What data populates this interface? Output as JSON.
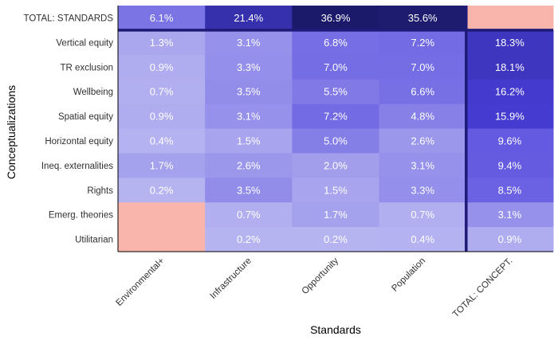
{
  "chart_data": {
    "type": "heatmap",
    "xlabel": "Standards",
    "ylabel": "Conceptualizations",
    "columns": [
      "Environmental+",
      "Infrastructure",
      "Opportunity",
      "Population",
      "TOTAL: CONCEPT."
    ],
    "rows": [
      "TOTAL: STANDARDS",
      "Vertical equity",
      "TR exclusion",
      "Wellbeing",
      "Spatial equity",
      "Horizontal equity",
      "Ineq. externalities",
      "Rights",
      "Emerg. theories",
      "Utilitarian"
    ],
    "values": [
      [
        6.1,
        21.4,
        36.9,
        35.6,
        null
      ],
      [
        1.3,
        3.1,
        6.8,
        7.2,
        18.3
      ],
      [
        0.9,
        3.3,
        7.0,
        7.0,
        18.1
      ],
      [
        0.7,
        3.5,
        5.5,
        6.6,
        16.2
      ],
      [
        0.9,
        3.1,
        7.2,
        4.8,
        15.9
      ],
      [
        0.4,
        1.5,
        5.0,
        2.6,
        9.6
      ],
      [
        1.7,
        2.6,
        2.0,
        3.1,
        9.4
      ],
      [
        0.2,
        3.5,
        1.5,
        3.3,
        8.5
      ],
      [
        null,
        0.7,
        1.7,
        0.7,
        3.1
      ],
      [
        null,
        0.2,
        0.2,
        0.4,
        0.9
      ]
    ],
    "labels": [
      [
        "6.1%",
        "21.4%",
        "36.9%",
        "35.6%",
        ""
      ],
      [
        "1.3%",
        "3.1%",
        "6.8%",
        "7.2%",
        "18.3%"
      ],
      [
        "0.9%",
        "3.3%",
        "7.0%",
        "7.0%",
        "18.1%"
      ],
      [
        "0.7%",
        "3.5%",
        "5.5%",
        "6.6%",
        "16.2%"
      ],
      [
        "0.9%",
        "3.1%",
        "7.2%",
        "4.8%",
        "15.9%"
      ],
      [
        "0.4%",
        "1.5%",
        "5.0%",
        "2.6%",
        "9.6%"
      ],
      [
        "1.7%",
        "2.6%",
        "2.0%",
        "3.1%",
        "9.4%"
      ],
      [
        "0.2%",
        "3.5%",
        "1.5%",
        "3.3%",
        "8.5%"
      ],
      [
        "",
        "0.7%",
        "1.7%",
        "0.7%",
        "3.1%"
      ],
      [
        "",
        "0.2%",
        "0.2%",
        "0.4%",
        "0.9%"
      ]
    ],
    "missing_color": "#f9b4ab",
    "color_scale": {
      "low": "#b7b5f0",
      "mid": "#4a3fdc",
      "high": "#1b1a6a"
    },
    "separator_color": "#1e1a78",
    "legend": "none",
    "grid": false
  }
}
